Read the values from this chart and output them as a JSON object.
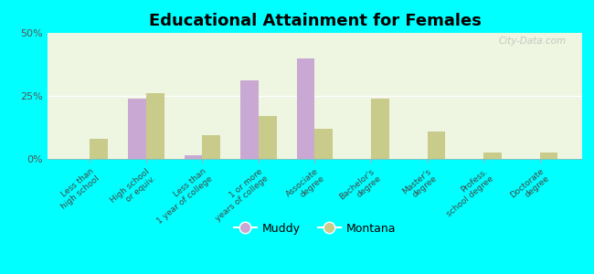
{
  "title": "Educational Attainment for Females",
  "categories": [
    "Less than\nhigh school",
    "High school\nor equiv.",
    "Less than\n1 year of college",
    "1 or more\nyears of college",
    "Associate\ndegree",
    "Bachelor's\ndegree",
    "Master's\ndegree",
    "Profess.\nschool degree",
    "Doctorate\ndegree"
  ],
  "muddy_values": [
    0.0,
    24.0,
    1.5,
    31.0,
    40.0,
    0.0,
    0.0,
    0.0,
    0.0
  ],
  "montana_values": [
    8.0,
    26.0,
    9.5,
    17.0,
    12.0,
    24.0,
    11.0,
    2.5,
    2.5
  ],
  "muddy_color": "#c9a8d4",
  "montana_color": "#c8cb8a",
  "background_color": "#00ffff",
  "plot_bg": "#eef5e0",
  "ylim": [
    0,
    50
  ],
  "yticks": [
    0,
    25,
    50
  ],
  "ytick_labels": [
    "0%",
    "25%",
    "50%"
  ],
  "bar_width": 0.32,
  "legend_labels": [
    "Muddy",
    "Montana"
  ],
  "watermark": "City-Data.com"
}
